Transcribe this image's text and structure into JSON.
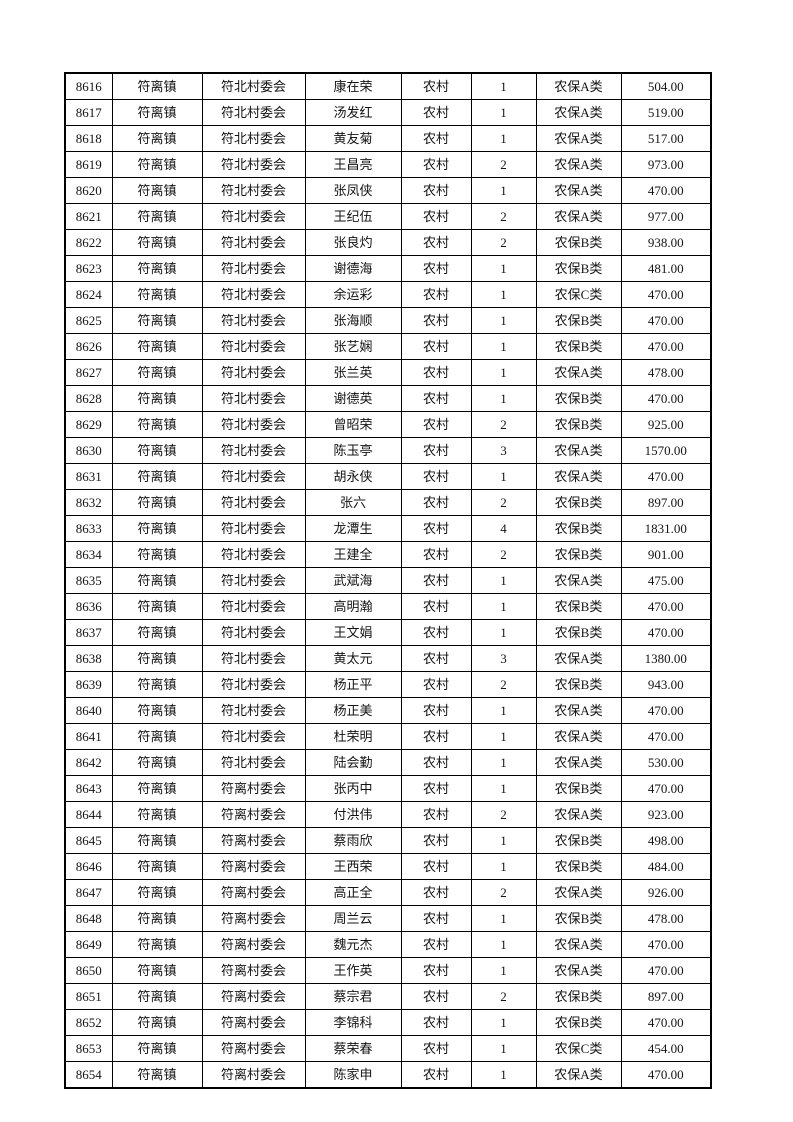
{
  "page": {
    "background_color": "#ffffff",
    "text_color": "#141414",
    "border_color": "#000000"
  },
  "table": {
    "rows": [
      [
        "8616",
        "符离镇",
        "符北村委会",
        "康在荣",
        "农村",
        "1",
        "农保A类",
        "504.00"
      ],
      [
        "8617",
        "符离镇",
        "符北村委会",
        "汤发红",
        "农村",
        "1",
        "农保A类",
        "519.00"
      ],
      [
        "8618",
        "符离镇",
        "符北村委会",
        "黄友菊",
        "农村",
        "1",
        "农保A类",
        "517.00"
      ],
      [
        "8619",
        "符离镇",
        "符北村委会",
        "王昌亮",
        "农村",
        "2",
        "农保A类",
        "973.00"
      ],
      [
        "8620",
        "符离镇",
        "符北村委会",
        "张凤侠",
        "农村",
        "1",
        "农保A类",
        "470.00"
      ],
      [
        "8621",
        "符离镇",
        "符北村委会",
        "王纪伍",
        "农村",
        "2",
        "农保A类",
        "977.00"
      ],
      [
        "8622",
        "符离镇",
        "符北村委会",
        "张良灼",
        "农村",
        "2",
        "农保B类",
        "938.00"
      ],
      [
        "8623",
        "符离镇",
        "符北村委会",
        "谢德海",
        "农村",
        "1",
        "农保B类",
        "481.00"
      ],
      [
        "8624",
        "符离镇",
        "符北村委会",
        "余运彩",
        "农村",
        "1",
        "农保C类",
        "470.00"
      ],
      [
        "8625",
        "符离镇",
        "符北村委会",
        "张海顺",
        "农村",
        "1",
        "农保B类",
        "470.00"
      ],
      [
        "8626",
        "符离镇",
        "符北村委会",
        "张艺娴",
        "农村",
        "1",
        "农保B类",
        "470.00"
      ],
      [
        "8627",
        "符离镇",
        "符北村委会",
        "张兰英",
        "农村",
        "1",
        "农保A类",
        "478.00"
      ],
      [
        "8628",
        "符离镇",
        "符北村委会",
        "谢德英",
        "农村",
        "1",
        "农保B类",
        "470.00"
      ],
      [
        "8629",
        "符离镇",
        "符北村委会",
        "曾昭荣",
        "农村",
        "2",
        "农保B类",
        "925.00"
      ],
      [
        "8630",
        "符离镇",
        "符北村委会",
        "陈玉亭",
        "农村",
        "3",
        "农保A类",
        "1570.00"
      ],
      [
        "8631",
        "符离镇",
        "符北村委会",
        "胡永侠",
        "农村",
        "1",
        "农保A类",
        "470.00"
      ],
      [
        "8632",
        "符离镇",
        "符北村委会",
        "张六",
        "农村",
        "2",
        "农保B类",
        "897.00"
      ],
      [
        "8633",
        "符离镇",
        "符北村委会",
        "龙潭生",
        "农村",
        "4",
        "农保B类",
        "1831.00"
      ],
      [
        "8634",
        "符离镇",
        "符北村委会",
        "王建全",
        "农村",
        "2",
        "农保B类",
        "901.00"
      ],
      [
        "8635",
        "符离镇",
        "符北村委会",
        "武斌海",
        "农村",
        "1",
        "农保A类",
        "475.00"
      ],
      [
        "8636",
        "符离镇",
        "符北村委会",
        "高明瀚",
        "农村",
        "1",
        "农保B类",
        "470.00"
      ],
      [
        "8637",
        "符离镇",
        "符北村委会",
        "王文娟",
        "农村",
        "1",
        "农保B类",
        "470.00"
      ],
      [
        "8638",
        "符离镇",
        "符北村委会",
        "黄太元",
        "农村",
        "3",
        "农保A类",
        "1380.00"
      ],
      [
        "8639",
        "符离镇",
        "符北村委会",
        "杨正平",
        "农村",
        "2",
        "农保B类",
        "943.00"
      ],
      [
        "8640",
        "符离镇",
        "符北村委会",
        "杨正美",
        "农村",
        "1",
        "农保A类",
        "470.00"
      ],
      [
        "8641",
        "符离镇",
        "符北村委会",
        "杜荣明",
        "农村",
        "1",
        "农保A类",
        "470.00"
      ],
      [
        "8642",
        "符离镇",
        "符北村委会",
        "陆会勤",
        "农村",
        "1",
        "农保A类",
        "530.00"
      ],
      [
        "8643",
        "符离镇",
        "符离村委会",
        "张丙中",
        "农村",
        "1",
        "农保B类",
        "470.00"
      ],
      [
        "8644",
        "符离镇",
        "符离村委会",
        "付洪伟",
        "农村",
        "2",
        "农保A类",
        "923.00"
      ],
      [
        "8645",
        "符离镇",
        "符离村委会",
        "蔡雨欣",
        "农村",
        "1",
        "农保B类",
        "498.00"
      ],
      [
        "8646",
        "符离镇",
        "符离村委会",
        "王西荣",
        "农村",
        "1",
        "农保B类",
        "484.00"
      ],
      [
        "8647",
        "符离镇",
        "符离村委会",
        "高正全",
        "农村",
        "2",
        "农保A类",
        "926.00"
      ],
      [
        "8648",
        "符离镇",
        "符离村委会",
        "周兰云",
        "农村",
        "1",
        "农保B类",
        "478.00"
      ],
      [
        "8649",
        "符离镇",
        "符离村委会",
        "魏元杰",
        "农村",
        "1",
        "农保A类",
        "470.00"
      ],
      [
        "8650",
        "符离镇",
        "符离村委会",
        "王作英",
        "农村",
        "1",
        "农保A类",
        "470.00"
      ],
      [
        "8651",
        "符离镇",
        "符离村委会",
        "蔡宗君",
        "农村",
        "2",
        "农保B类",
        "897.00"
      ],
      [
        "8652",
        "符离镇",
        "符离村委会",
        "李锦科",
        "农村",
        "1",
        "农保B类",
        "470.00"
      ],
      [
        "8653",
        "符离镇",
        "符离村委会",
        "蔡荣春",
        "农村",
        "1",
        "农保C类",
        "454.00"
      ],
      [
        "8654",
        "符离镇",
        "符离村委会",
        "陈家申",
        "农村",
        "1",
        "农保A类",
        "470.00"
      ]
    ]
  }
}
